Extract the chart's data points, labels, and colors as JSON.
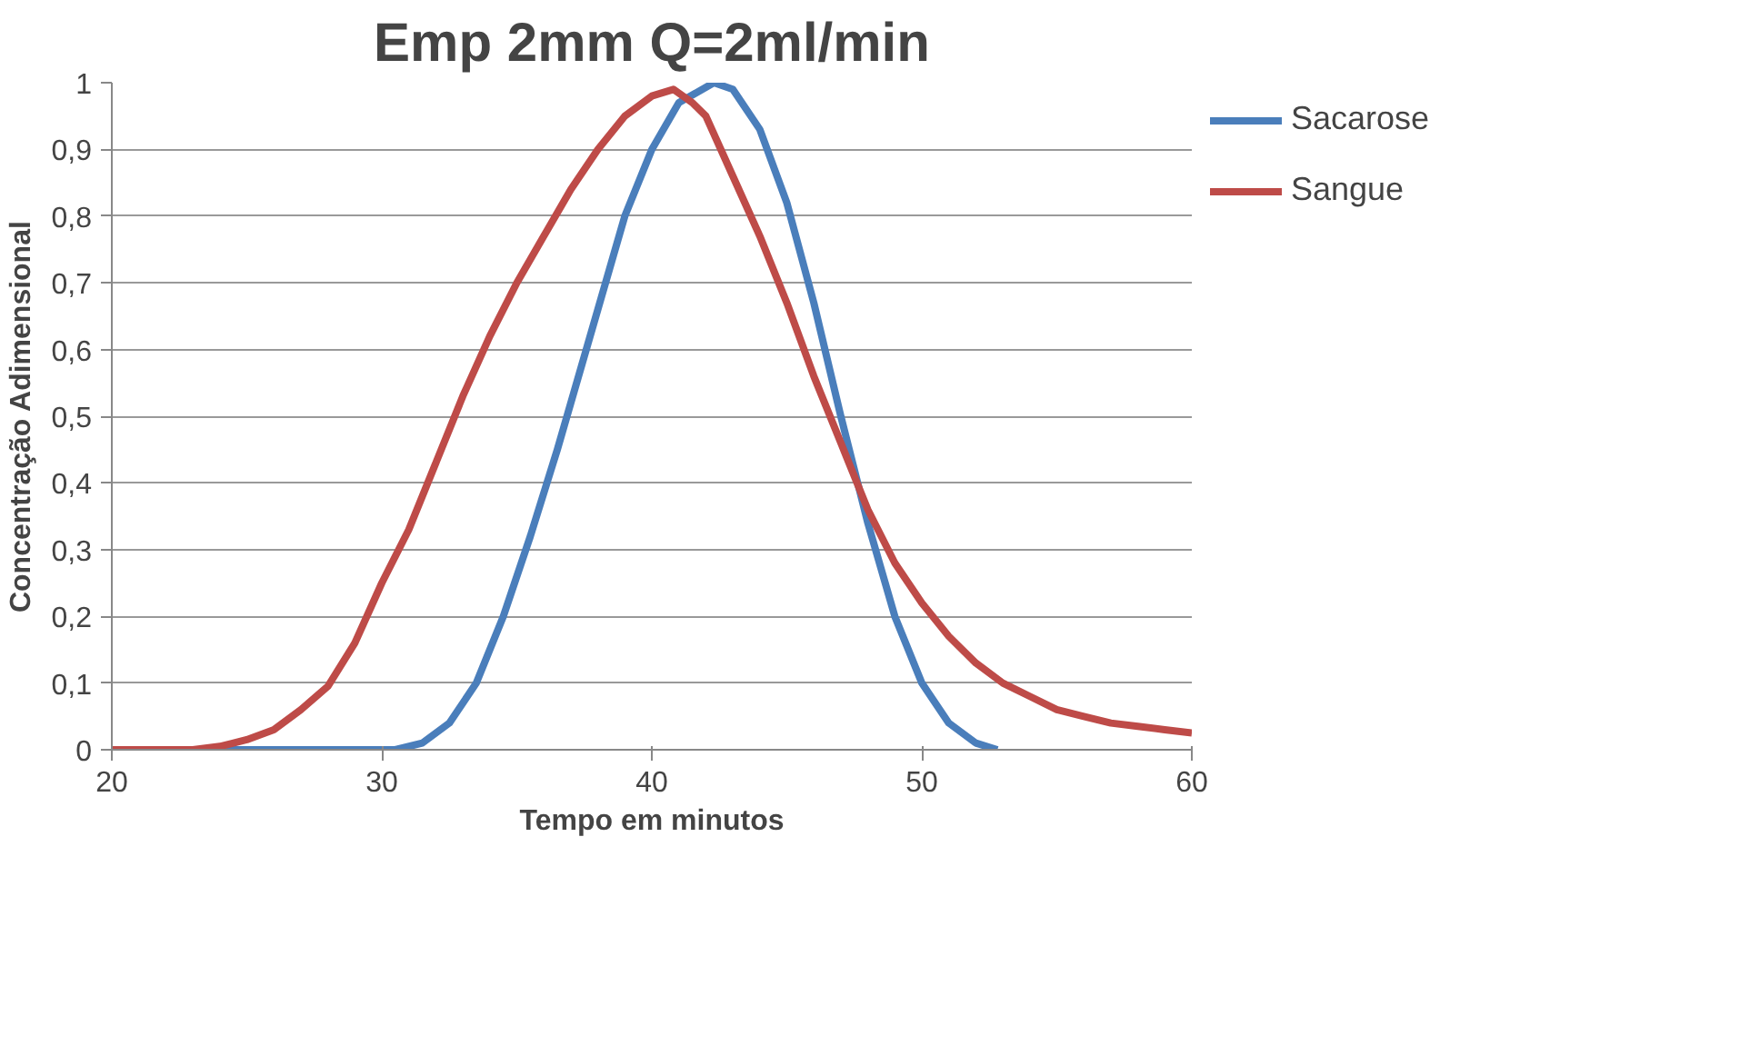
{
  "chart_data": {
    "type": "line",
    "title": "Emp 2mm Q=2ml/min",
    "xlabel": "Tempo em minutos",
    "ylabel": "Concentração Adimensional",
    "xlim": [
      20,
      60
    ],
    "xticks": [
      20,
      30,
      40,
      50,
      60
    ],
    "ylim": [
      0,
      1
    ],
    "yticks": [
      0,
      {
        "value": 0.1,
        "label": "0,1"
      },
      {
        "value": 0.2,
        "label": "0,2"
      },
      {
        "value": 0.3,
        "label": "0,3"
      },
      {
        "value": 0.4,
        "label": "0,4"
      },
      {
        "value": 0.5,
        "label": "0,5"
      },
      {
        "value": 0.6,
        "label": "0,6"
      },
      {
        "value": 0.7,
        "label": "0,7"
      },
      {
        "value": 0.8,
        "label": "0,8"
      },
      {
        "value": 0.9,
        "label": "0,9"
      },
      1
    ],
    "grid": "y",
    "legend": "right",
    "marker": "none",
    "line_style": "solid",
    "series": [
      {
        "name": "Sacarose",
        "color": "#4a7ebb",
        "x": [
          20,
          30.5,
          31.5,
          32.5,
          33.5,
          34.5,
          35.5,
          36.5,
          37,
          38,
          39,
          40,
          41,
          42.3,
          43,
          44,
          45,
          46,
          47,
          48,
          49,
          50,
          51,
          52,
          52.8
        ],
        "values": [
          0,
          0,
          0.01,
          0.04,
          0.1,
          0.2,
          0.32,
          0.45,
          0.52,
          0.66,
          0.8,
          0.9,
          0.97,
          1.0,
          0.99,
          0.93,
          0.82,
          0.67,
          0.5,
          0.34,
          0.2,
          0.1,
          0.04,
          0.01,
          0
        ]
      },
      {
        "name": "Sangue",
        "color": "#be4b48",
        "x": [
          20,
          23,
          24,
          25,
          26,
          27,
          28,
          29,
          30,
          31,
          32,
          33,
          34,
          35,
          36,
          37,
          38,
          39,
          40,
          40.8,
          41.5,
          42,
          43,
          44,
          45,
          46,
          47,
          48,
          49,
          50,
          51,
          52,
          53,
          54,
          55,
          56,
          57,
          58,
          59,
          60
        ],
        "values": [
          0,
          0,
          0.005,
          0.015,
          0.03,
          0.06,
          0.095,
          0.16,
          0.25,
          0.33,
          0.43,
          0.53,
          0.62,
          0.7,
          0.77,
          0.84,
          0.9,
          0.95,
          0.98,
          0.99,
          0.97,
          0.95,
          0.86,
          0.77,
          0.67,
          0.56,
          0.46,
          0.36,
          0.28,
          0.22,
          0.17,
          0.13,
          0.1,
          0.08,
          0.06,
          0.05,
          0.04,
          0.035,
          0.03,
          0.025
        ]
      }
    ]
  }
}
